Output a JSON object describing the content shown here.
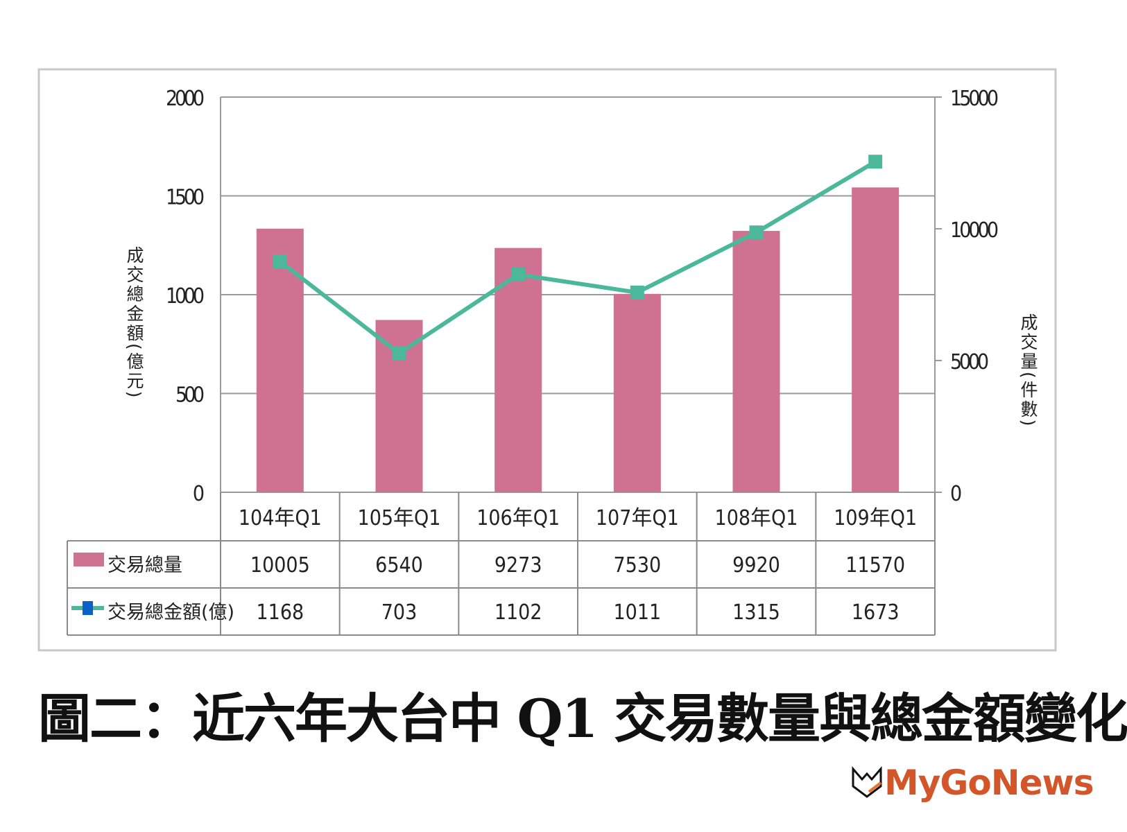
{
  "chart_data": {
    "type": "bar+line",
    "categories": [
      "104年Q1",
      "105年Q1",
      "106年Q1",
      "107年Q1",
      "108年Q1",
      "109年Q1"
    ],
    "series": [
      {
        "name": "交易總量",
        "type": "bar",
        "axis": "right",
        "color": "#cf7190",
        "values": [
          10005,
          6540,
          9273,
          7530,
          9920,
          11570
        ]
      },
      {
        "name": "交易總金額(億)",
        "type": "line",
        "axis": "left",
        "color": "#4bb89b",
        "marker_color": "#0a62c7",
        "values": [
          1168,
          703,
          1102,
          1011,
          1315,
          1673
        ]
      }
    ],
    "left_axis": {
      "label": "成交總金額(億元)",
      "range": [
        0,
        2000
      ],
      "ticks": [
        "0",
        "500",
        "1000",
        "1500",
        "2000"
      ]
    },
    "right_axis": {
      "label": "成交量(件數)",
      "range": [
        0,
        15000
      ],
      "ticks": [
        "0",
        "5000",
        "10000",
        "15000"
      ]
    },
    "grid": true,
    "legend": "data-table"
  },
  "title": "圖二：近六年大台中 Q1 交易數量與總金額變化",
  "logo": "MyGoNews"
}
